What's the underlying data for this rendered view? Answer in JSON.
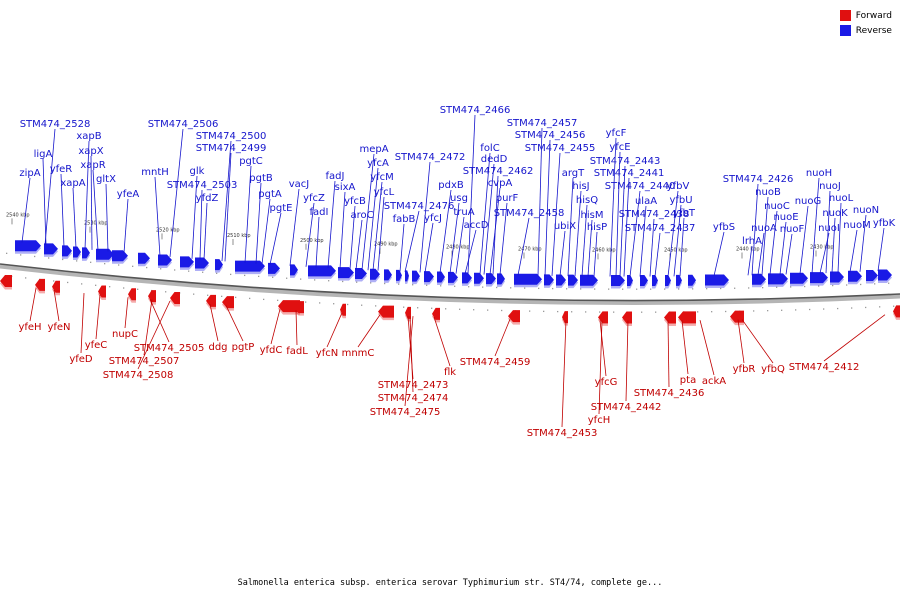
{
  "colors": {
    "forward": "#e01010",
    "reverse": "#1a1ae6",
    "forward_text": "#c00000",
    "reverse_text": "#1515cc",
    "backbone": "#888888"
  },
  "legend": {
    "forward": "Forward",
    "reverse": "Reverse"
  },
  "caption": "Salmonella enterica subsp. enterica serovar Typhimurium str. ST4/74, complete ge...",
  "chart_data": {
    "type": "genome-map",
    "ticks": [
      "2540 kbp",
      "2530 kbp",
      "2520 kbp",
      "2510 kbp",
      "2500 kbp",
      "2490 kbp",
      "2480 kbp",
      "2470 kbp",
      "2460 kbp",
      "2450 kbp",
      "2440 kbp",
      "2430 kbp"
    ],
    "reverse_genes": [
      "zipA",
      "ligA",
      "yfeR",
      "xapA",
      "xapB",
      "xapX",
      "xapR",
      "gltX",
      "yfeA",
      "mntH",
      "STM474_2528",
      "STM474_2506",
      "glk",
      "yfdZ",
      "STM474_2503",
      "STM474_2500",
      "STM474_2499",
      "pgtC",
      "pgtB",
      "pgtA",
      "pgtE",
      "vacJ",
      "yfcZ",
      "fadI",
      "fadJ",
      "sixA",
      "yfcB",
      "aroC",
      "mepA",
      "yfcA",
      "yfcM",
      "yfcL",
      "STM474_2476",
      "fabB",
      "yfcJ",
      "STM474_2472",
      "pdxB",
      "usg",
      "truA",
      "accD",
      "STM474_2466",
      "folC",
      "dedD",
      "cvpA",
      "purF",
      "STM474_2462",
      "STM474_2458",
      "ubiX",
      "argT",
      "hisJ",
      "hisQ",
      "hisM",
      "hisP",
      "STM474_2457",
      "STM474_2456",
      "STM474_2455",
      "yfcF",
      "yfcE",
      "STM474_2443",
      "STM474_2441",
      "STM474_2440",
      "ulaA",
      "STM474_2438",
      "STM474_2437",
      "yfbV",
      "yfbU",
      "yfbT",
      "yfbS",
      "lrhA",
      "STM474_2426",
      "nuoA",
      "nuoB",
      "nuoC",
      "nuoE",
      "nuoF",
      "nuoG",
      "nuoH",
      "nuoI",
      "nuoJ",
      "nuoK",
      "nuoL",
      "nuoM",
      "nuoN",
      "yfbK"
    ],
    "forward_genes": [
      "yfeH",
      "yfeN",
      "yfeD",
      "yfeC",
      "nupC",
      "STM474_2505",
      "STM474_2507",
      "STM474_2508",
      "ddg",
      "pgtP",
      "yfdC",
      "fadL",
      "yfcN",
      "mnmC",
      "STM474_2473",
      "STM474_2474",
      "STM474_2475",
      "flk",
      "STM474_2459",
      "STM474_2453",
      "yfcG",
      "yfcH",
      "STM474_2442",
      "STM474_2436",
      "pta",
      "ackA",
      "yfbR",
      "yfbQ",
      "STM474_2412"
    ]
  }
}
